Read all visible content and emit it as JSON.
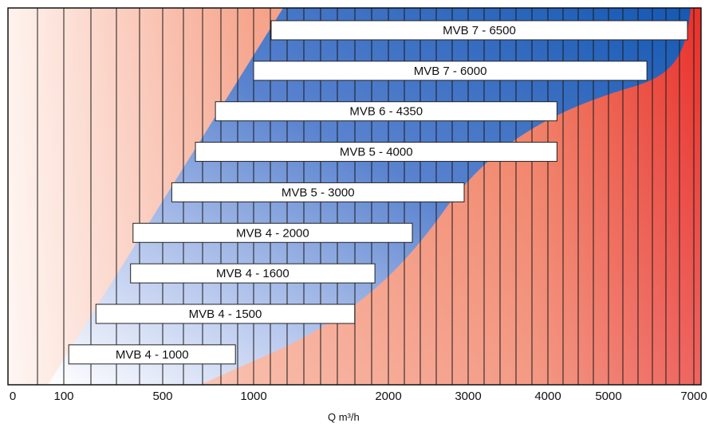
{
  "chart_data": {
    "type": "bar",
    "orientation": "horizontal-range",
    "title": "",
    "xlabel": "Q m³/h",
    "ylabel": "",
    "xscale": "nonlinear",
    "x_ticks": [
      0,
      100,
      500,
      1000,
      2000,
      3000,
      4000,
      5000,
      7000
    ],
    "x_tick_labels": [
      "0",
      "100",
      "500",
      "1000",
      "2000",
      "3000",
      "4000",
      "5000",
      "7000"
    ],
    "grid": "vertical",
    "series": [
      {
        "label": "MVB 4 - 1000",
        "min": 120,
        "max": 900
      },
      {
        "label": "MVB 4 - 1500",
        "min": 230,
        "max": 1750
      },
      {
        "label": "MVB 4 - 1600",
        "min": 370,
        "max": 1900
      },
      {
        "label": "MVB 4 - 2000",
        "min": 380,
        "max": 2300
      },
      {
        "label": "MVB 5 - 3000",
        "min": 550,
        "max": 2950
      },
      {
        "label": "MVB 5 - 4000",
        "min": 680,
        "max": 4150
      },
      {
        "label": "MVB 6 - 4350",
        "min": 790,
        "max": 4150
      },
      {
        "label": "MVB 7 - 6000",
        "min": 1000,
        "max": 5900
      },
      {
        "label": "MVB 7 - 6500",
        "min": 1130,
        "max": 6850
      }
    ],
    "colors": {
      "background_low": "#fdeee6",
      "background_high": "#ec3a28",
      "region_light": "#e8eefa",
      "region_dark": "#1a5fb5",
      "bar_fill": "#ffffff",
      "bar_stroke": "#222222"
    }
  }
}
